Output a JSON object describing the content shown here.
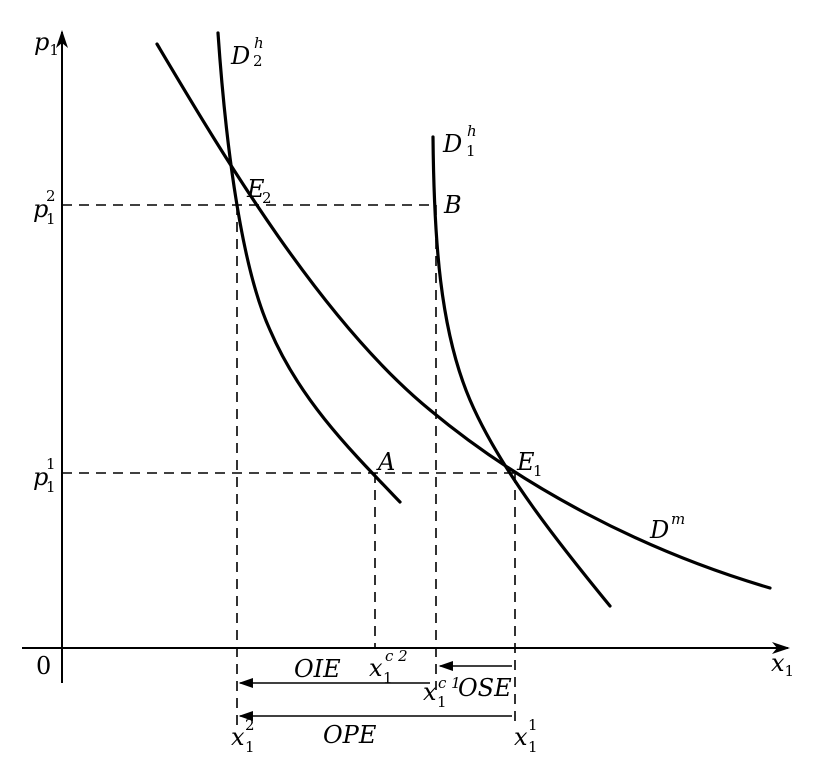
{
  "axes": {
    "y_label": "p",
    "y_label_sub": "1",
    "x_label": "x",
    "x_label_sub": "1",
    "origin": "0"
  },
  "price_labels": {
    "p_high": {
      "base": "p",
      "sub": "1",
      "sup": "2"
    },
    "p_low": {
      "base": "p",
      "sub": "1",
      "sup": "1"
    }
  },
  "quantity_labels": {
    "x2": {
      "base": "x",
      "sub": "1",
      "sup": "2"
    },
    "xc2": {
      "base": "x",
      "sub": "1",
      "sup": "c 2"
    },
    "xc1": {
      "base": "x",
      "sub": "1",
      "sup": "c 1"
    },
    "x1": {
      "base": "x",
      "sub": "1",
      "sup": "1"
    }
  },
  "curves": {
    "d2h": {
      "base": "D",
      "sup": "h",
      "sub": "2"
    },
    "d1h": {
      "base": "D",
      "sup": "h",
      "sub": "1"
    },
    "dm": {
      "base": "D",
      "sup": "m"
    }
  },
  "points": {
    "e2": {
      "base": "E",
      "sub": "2"
    },
    "e1": {
      "base": "E",
      "sub": "1"
    },
    "a": "A",
    "b": "B"
  },
  "effects": {
    "income": "OIE",
    "substitution": "OSE",
    "price": "OPE"
  }
}
